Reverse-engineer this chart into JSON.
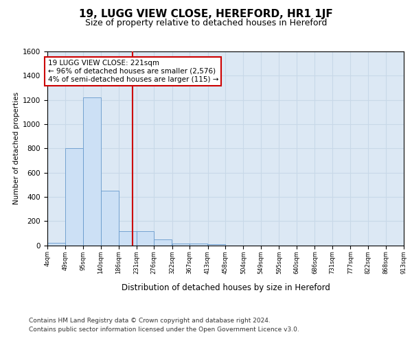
{
  "title": "19, LUGG VIEW CLOSE, HEREFORD, HR1 1JF",
  "subtitle": "Size of property relative to detached houses in Hereford",
  "xlabel": "Distribution of detached houses by size in Hereford",
  "ylabel": "Number of detached properties",
  "footer_line1": "Contains HM Land Registry data © Crown copyright and database right 2024.",
  "footer_line2": "Contains public sector information licensed under the Open Government Licence v3.0.",
  "annotation_line1": "19 LUGG VIEW CLOSE: 221sqm",
  "annotation_line2": "← 96% of detached houses are smaller (2,576)",
  "annotation_line3": "4% of semi-detached houses are larger (115) →",
  "property_size": 221,
  "bar_left_edges": [
    4,
    49,
    95,
    140,
    186,
    231,
    276,
    322,
    367,
    413,
    458,
    504,
    549,
    595,
    640,
    686,
    731,
    777,
    822,
    868
  ],
  "bar_widths": [
    45,
    46,
    45,
    46,
    45,
    45,
    46,
    45,
    46,
    45,
    46,
    45,
    46,
    45,
    46,
    45,
    46,
    45,
    46,
    45
  ],
  "bar_heights": [
    20,
    800,
    1220,
    450,
    115,
    115,
    50,
    15,
    15,
    10,
    0,
    0,
    0,
    0,
    0,
    0,
    0,
    0,
    0,
    0
  ],
  "bar_color": "#cce0f5",
  "bar_edge_color": "#6699cc",
  "vline_color": "#cc0000",
  "vline_x": 221,
  "annotation_box_color": "#ffffff",
  "annotation_box_edge": "#cc0000",
  "grid_color": "#c8d8e8",
  "bg_color": "#dce8f4",
  "ylim": [
    0,
    1600
  ],
  "yticks": [
    0,
    200,
    400,
    600,
    800,
    1000,
    1200,
    1400,
    1600
  ],
  "tick_labels": [
    "4sqm",
    "49sqm",
    "95sqm",
    "140sqm",
    "186sqm",
    "231sqm",
    "276sqm",
    "322sqm",
    "367sqm",
    "413sqm",
    "458sqm",
    "504sqm",
    "549sqm",
    "595sqm",
    "640sqm",
    "686sqm",
    "731sqm",
    "777sqm",
    "822sqm",
    "868sqm",
    "913sqm"
  ]
}
